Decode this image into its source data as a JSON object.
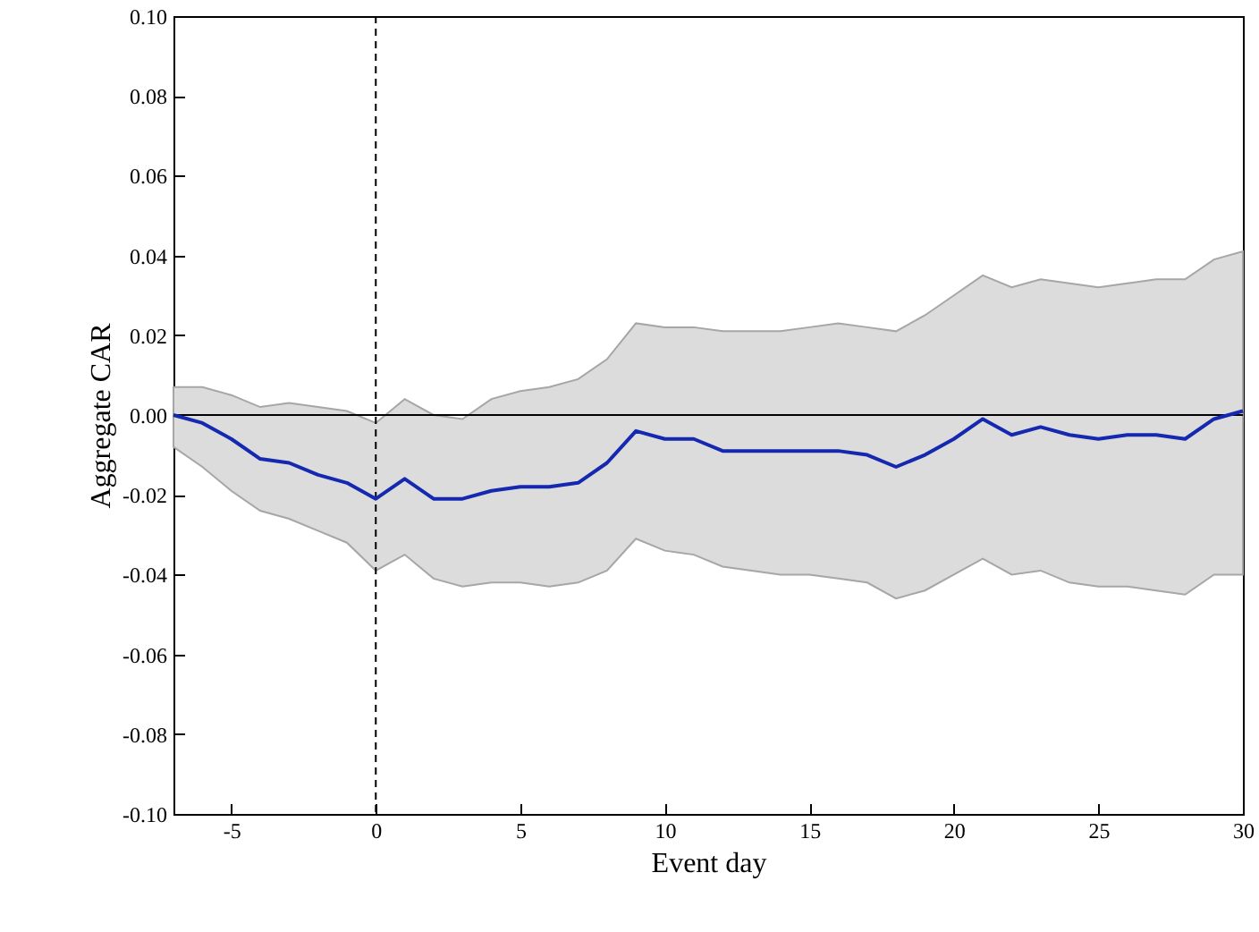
{
  "chart_data": {
    "type": "line",
    "xlabel": "Event day",
    "ylabel": "Aggregate CAR",
    "x": [
      -7,
      -6,
      -5,
      -4,
      -3,
      -2,
      -1,
      0,
      1,
      2,
      3,
      4,
      5,
      6,
      7,
      8,
      9,
      10,
      11,
      12,
      13,
      14,
      15,
      16,
      17,
      18,
      19,
      20,
      21,
      22,
      23,
      24,
      25,
      26,
      27,
      28,
      29,
      30
    ],
    "series": [
      {
        "color": "#1428b0",
        "values": [
          0.0,
          -0.002,
          -0.006,
          -0.011,
          -0.012,
          -0.015,
          -0.017,
          -0.021,
          -0.016,
          -0.021,
          -0.021,
          -0.019,
          -0.018,
          -0.018,
          -0.017,
          -0.012,
          -0.004,
          -0.006,
          -0.006,
          -0.009,
          -0.009,
          -0.009,
          -0.009,
          -0.009,
          -0.01,
          -0.013,
          -0.01,
          -0.006,
          -0.001,
          -0.005,
          -0.003,
          -0.005,
          -0.006,
          -0.005,
          -0.005,
          -0.006,
          -0.001,
          0.001
        ],
        "lower": [
          -0.008,
          -0.013,
          -0.019,
          -0.024,
          -0.026,
          -0.029,
          -0.032,
          -0.039,
          -0.035,
          -0.041,
          -0.043,
          -0.042,
          -0.042,
          -0.043,
          -0.042,
          -0.039,
          -0.031,
          -0.034,
          -0.035,
          -0.038,
          -0.039,
          -0.04,
          -0.04,
          -0.041,
          -0.042,
          -0.046,
          -0.044,
          -0.04,
          -0.036,
          -0.04,
          -0.039,
          -0.042,
          -0.043,
          -0.043,
          -0.044,
          -0.045,
          -0.04,
          -0.04
        ],
        "upper": [
          0.007,
          0.007,
          0.005,
          0.002,
          0.003,
          0.002,
          0.001,
          -0.002,
          0.004,
          0.0,
          -0.001,
          0.004,
          0.006,
          0.007,
          0.009,
          0.014,
          0.023,
          0.022,
          0.022,
          0.021,
          0.021,
          0.021,
          0.022,
          0.023,
          0.022,
          0.021,
          0.025,
          0.03,
          0.035,
          0.032,
          0.034,
          0.033,
          0.032,
          0.033,
          0.034,
          0.034,
          0.039,
          0.041
        ]
      }
    ],
    "xlim": [
      -7,
      30
    ],
    "xticks": [
      -5,
      0,
      5,
      10,
      15,
      20,
      25,
      30
    ],
    "ylim": [
      -0.1,
      0.1
    ],
    "yticks": [
      {
        "value": -0.1,
        "label": "-0.10"
      },
      {
        "value": -0.08,
        "label": "-0.08"
      },
      {
        "value": -0.06,
        "label": "-0.06"
      },
      {
        "value": -0.04,
        "label": "-0.04"
      },
      {
        "value": -0.02,
        "label": "-0.02"
      },
      {
        "value": 0,
        "label": "0.00"
      },
      {
        "value": 0.02,
        "label": "0.02"
      },
      {
        "value": 0.04,
        "label": "0.04"
      },
      {
        "value": 0.06,
        "label": "0.06"
      },
      {
        "value": 0.08,
        "label": "0.08"
      },
      {
        "value": 0.1,
        "label": "0.10"
      }
    ],
    "ref_lines": [
      {
        "axis": "y",
        "value": 0,
        "color": "#000000",
        "line_style": "solid"
      },
      {
        "axis": "x",
        "value": 0,
        "color": "#000000",
        "line_style": "dashed"
      }
    ],
    "marker": "none",
    "line_style": "solid"
  }
}
